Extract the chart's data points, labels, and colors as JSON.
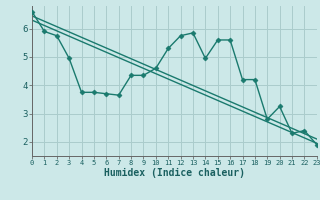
{
  "title": "",
  "xlabel": "Humidex (Indice chaleur)",
  "bg_color": "#cce8e8",
  "grid_color": "#aacccc",
  "line_color": "#1a7a6e",
  "xlim": [
    0,
    23
  ],
  "ylim": [
    1.5,
    6.8
  ],
  "xticks": [
    0,
    1,
    2,
    3,
    4,
    5,
    6,
    7,
    8,
    9,
    10,
    11,
    12,
    13,
    14,
    15,
    16,
    17,
    18,
    19,
    20,
    21,
    22,
    23
  ],
  "yticks": [
    2,
    3,
    4,
    5,
    6
  ],
  "data_line": [
    6.6,
    5.9,
    5.75,
    4.95,
    3.75,
    3.75,
    3.7,
    3.65,
    4.35,
    4.35,
    4.6,
    5.3,
    5.75,
    5.85,
    4.95,
    5.6,
    5.6,
    4.2,
    4.2,
    2.8,
    3.25,
    2.3,
    2.4,
    1.9
  ],
  "reg_line1": [
    [
      0,
      6.45
    ],
    [
      23,
      2.1
    ]
  ],
  "reg_line2": [
    [
      0,
      6.3
    ],
    [
      23,
      1.95
    ]
  ],
  "marker": "D",
  "markersize": 2.5,
  "linewidth": 1.0
}
